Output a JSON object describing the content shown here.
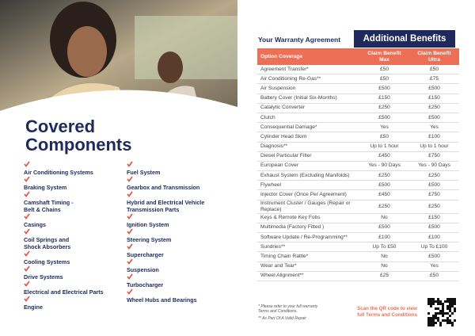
{
  "header": {
    "left_title": [
      "Covered",
      "Components"
    ],
    "right_title": "Your Warranty Agreement",
    "benefits_title": "Additional Benefits"
  },
  "components": {
    "col1": [
      [
        "Air Conditioning Systems"
      ],
      [
        "Braking System"
      ],
      [
        "Camshaft Timing -",
        "Belt & Chains"
      ],
      [
        "Casings"
      ],
      [
        "Coil Springs and",
        "Shock Absorbers"
      ],
      [
        "Cooling Systems"
      ],
      [
        "Drive Systems"
      ],
      [
        "Electrical and Electrical Parts"
      ],
      [
        "Engine"
      ]
    ],
    "col2": [
      [
        "Fuel System"
      ],
      [
        "Gearbox and Transmission"
      ],
      [
        "Hybrid and Electrical Vehicle",
        "Transmission Parts"
      ],
      [
        "Ignition System"
      ],
      [
        "Steering System"
      ],
      [
        "Supercharger"
      ],
      [
        "Suspension"
      ],
      [
        "Turbocharger"
      ],
      [
        "Wheel Hubs and Bearings"
      ]
    ]
  },
  "table": {
    "columns": [
      "Option Coverage",
      "Claim Benefit Max",
      "Claim Benefit Ultra"
    ],
    "rows": [
      [
        "Agreement Transfer*",
        "£50",
        "£50"
      ],
      [
        "Air Conditioning Re-Gas**",
        "£50",
        "£75"
      ],
      [
        "Air Suspension",
        "£500",
        "£500"
      ],
      [
        "Battery Cover (Initial Six-Months)",
        "£150",
        "£150"
      ],
      [
        "Catalytic Converter",
        "£250",
        "£250"
      ],
      [
        "Clutch",
        "£500",
        "£500"
      ],
      [
        "Consequential Damage*",
        "Yes",
        "Yes"
      ],
      [
        "Cylinder Head Skim",
        "£50",
        "£100"
      ],
      [
        "Diagnosis**",
        "Up to 1 hour",
        "Up to 1 hour"
      ],
      [
        "Diesel Particular Filter",
        "£450",
        "£750"
      ],
      [
        "European Cover",
        "Yes - 90 Days",
        "Yes - 90 Days"
      ],
      [
        "Exhaust System (Excluding Manifolds)",
        "£250",
        "£250"
      ],
      [
        "Flywheel",
        "£500",
        "£500"
      ],
      [
        "Injector Cover (Once Per Agreement)",
        "£450",
        "£750"
      ],
      [
        "Instrument Cluster / Gauges (Repair or Replace)",
        "£250",
        "£250"
      ],
      [
        "Keys & Remote Key Fobs",
        "No",
        "£150"
      ],
      [
        "Multimedia (Factory Fitted )",
        "£500",
        "£500"
      ],
      [
        "Software Update / Re-Programming**",
        "£100",
        "£100"
      ],
      [
        "Sundries**",
        "Up To £50",
        "Up To £100"
      ],
      [
        "Timing Chain Rattle*",
        "No",
        "£500"
      ],
      [
        "Wear and Tear*",
        "No",
        "Yes"
      ],
      [
        "Wheel Alignment**",
        "£25",
        "£50"
      ]
    ]
  },
  "footnotes": [
    "* Please refer to your full warranty Terms and Conditions.",
    "** As Part Of A Valid Repair"
  ],
  "qr_text": "Scan the QR code to view full Terms and Conditions"
}
